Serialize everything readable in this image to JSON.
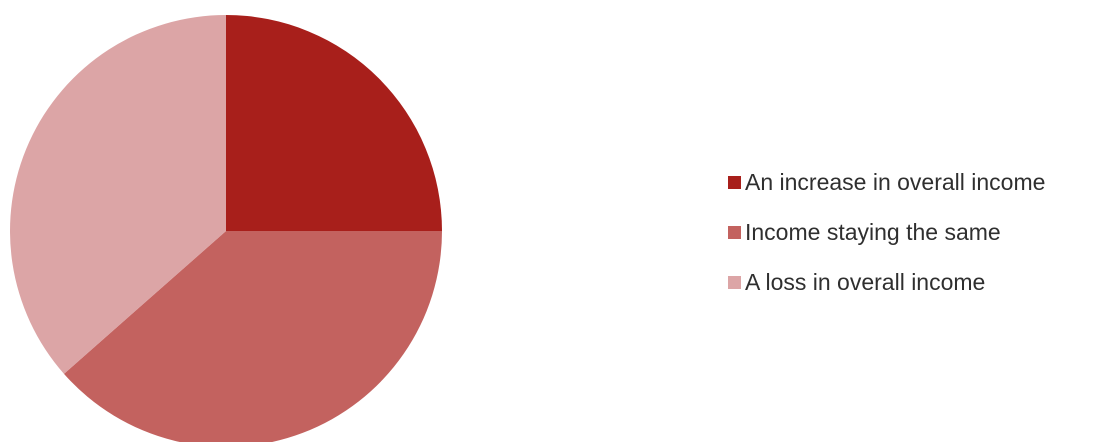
{
  "chart_data": {
    "type": "pie",
    "title": "",
    "legend_position": "right",
    "start_angle_deg": 0,
    "direction": "clockwise",
    "slices": [
      {
        "label": "An increase in overall income",
        "value": 0.25,
        "color": "#a81f1b"
      },
      {
        "label": "Income staying the same",
        "value": 0.385,
        "color": "#c3625f"
      },
      {
        "label": "A loss in overall income",
        "value": 0.365,
        "color": "#dca5a6"
      }
    ]
  }
}
